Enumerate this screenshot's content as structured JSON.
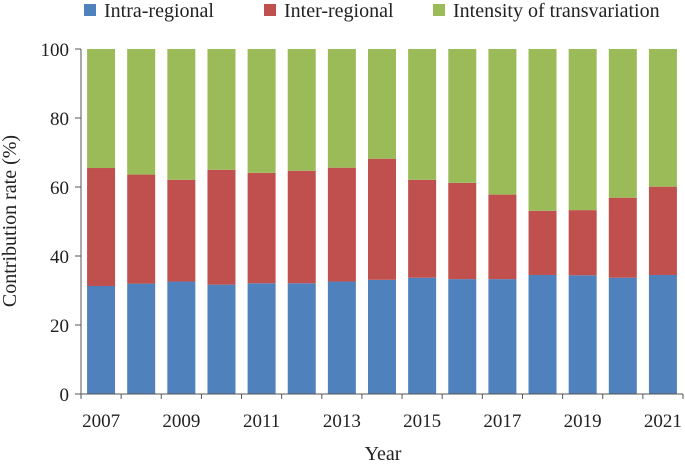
{
  "chart_data": {
    "type": "bar",
    "stacked": true,
    "title": "",
    "xlabel": "Year",
    "ylabel": "Contribution rate (%)",
    "ylim": [
      0,
      100
    ],
    "yticks": [
      "0",
      "20",
      "40",
      "60",
      "80",
      "100"
    ],
    "xtick_labels": [
      "2007",
      "2009",
      "2011",
      "2013",
      "2015",
      "2017",
      "2019",
      "2021"
    ],
    "categories": [
      "2007",
      "2008",
      "2009",
      "2010",
      "2011",
      "2012",
      "2013",
      "2014",
      "2015",
      "2016",
      "2017",
      "2018",
      "2019",
      "2020",
      "2021"
    ],
    "legend_position": "top",
    "grid": false,
    "series": [
      {
        "name": "Intra-regional",
        "color": "#4F81BD",
        "values": [
          31.3,
          32.0,
          32.6,
          31.7,
          32.1,
          32.1,
          32.6,
          33.1,
          33.7,
          33.3,
          33.3,
          34.5,
          34.4,
          33.7,
          34.5
        ]
      },
      {
        "name": "Inter-regional",
        "color": "#C0504D",
        "values": [
          34.2,
          31.6,
          29.5,
          33.3,
          32.0,
          32.6,
          33.0,
          35.1,
          28.4,
          27.9,
          24.5,
          18.6,
          18.9,
          23.2,
          25.6
        ]
      },
      {
        "name": "Intensity of transvariation",
        "color": "#9BBB59",
        "values": [
          34.5,
          36.4,
          37.9,
          35.0,
          35.9,
          35.3,
          34.4,
          31.8,
          37.9,
          38.8,
          42.2,
          46.9,
          46.7,
          43.1,
          39.9
        ]
      }
    ]
  }
}
